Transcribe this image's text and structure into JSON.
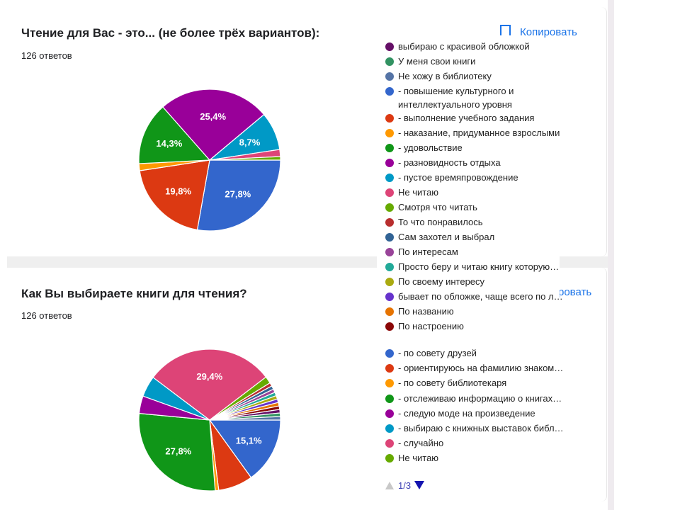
{
  "card1": {
    "title": "Чтение для Вас - это... (не более трёх вариантов):",
    "count": "126 ответов",
    "copy_label": "Копировать"
  },
  "card2": {
    "title": "Как Вы выбираете книги для чтения?",
    "count": "126 ответов",
    "copy_label": "ровать"
  },
  "legend_top": [
    {
      "label": "выбираю с красивой обложкой",
      "color": "#651067"
    },
    {
      "label": "У меня свои книги",
      "color": "#329262"
    },
    {
      "label": "Не хожу в библиотеку",
      "color": "#5574a6"
    },
    {
      "label": "- повышение культурного и интеллектуального уровня",
      "color": "#3366cc"
    },
    {
      "label": "- выполнение учебного задания",
      "color": "#dc3912"
    },
    {
      "label": "- наказание, придуманное взрослыми",
      "color": "#ff9900"
    },
    {
      "label": "- удовольствие",
      "color": "#109618"
    },
    {
      "label": "- разновидность отдыха",
      "color": "#990099"
    },
    {
      "label": "- пустое времяпровождение",
      "color": "#0099c6"
    },
    {
      "label": "Не читаю",
      "color": "#dd4477"
    },
    {
      "label": "Смотря что читать",
      "color": "#66aa00"
    },
    {
      "label": "То что понравилось",
      "color": "#b82e2e"
    },
    {
      "label": "Сам захотел и выбрал",
      "color": "#316395"
    },
    {
      "label": "По интересам",
      "color": "#994499"
    },
    {
      "label": "Просто беру и читаю книгу которую…",
      "color": "#22aa99"
    },
    {
      "label": "По своему интересу",
      "color": "#aaaa11"
    },
    {
      "label": "бывает по обложке, чаще всего по л…",
      "color": "#6633cc"
    },
    {
      "label": "По названию",
      "color": "#e67300"
    },
    {
      "label": "По настроению",
      "color": "#8b0707"
    }
  ],
  "legend_bottom": [
    {
      "label": "- по совету друзей",
      "color": "#3366cc"
    },
    {
      "label": "- ориентируюсь на фамилию знаком…",
      "color": "#dc3912"
    },
    {
      "label": "- по совету библиотекаря",
      "color": "#ff9900"
    },
    {
      "label": "- отслеживаю информацию о книгах…",
      "color": "#109618"
    },
    {
      "label": "- следую моде на произведение",
      "color": "#990099"
    },
    {
      "label": "- выбираю с книжных выставок библ…",
      "color": "#0099c6"
    },
    {
      "label": "- случайно",
      "color": "#dd4477"
    },
    {
      "label": "Не читаю",
      "color": "#66aa00"
    }
  ],
  "pager": {
    "label": "1/3"
  },
  "chart_data": [
    {
      "type": "pie",
      "title": "Чтение для Вас - это... (не более трёх вариантов):",
      "categories": [
        "- повышение культурного и интеллектуального уровня",
        "- выполнение учебного задания",
        "- наказание, придуманное взрослыми",
        "- удовольствие",
        "- разновидность отдыха",
        "- пустое времяпровождение",
        "Не читаю",
        "Смотря что читать"
      ],
      "values": [
        27.8,
        19.8,
        1.6,
        14.3,
        25.4,
        8.7,
        1.6,
        0.8
      ],
      "labels": [
        "27,8%",
        "19,8%",
        "",
        "14,3%",
        "25,4%",
        "8,7%",
        "",
        ""
      ],
      "colors": [
        "#3366cc",
        "#dc3912",
        "#ff9900",
        "#109618",
        "#990099",
        "#0099c6",
        "#dd4477",
        "#66aa00"
      ]
    },
    {
      "type": "pie",
      "title": "Как Вы выбираете книги для чтения?",
      "categories": [
        "- по совету друзей",
        "- ориентируюсь на фамилию знаком…",
        "- по совету библиотекаря",
        "- отслеживаю информацию о книгах…",
        "- следую моде на произведение",
        "- выбираю с книжных выставок библ…",
        "- случайно",
        "Не читаю",
        "То что понравилось",
        "Сам захотел и выбрал",
        "По интересам",
        "Просто беру и читаю книгу которую…",
        "По своему интересу",
        "бывает по обложке, чаще всего по л…",
        "По названию",
        "По настроению",
        "выбираю с красивой обложкой",
        "У меня свои книги",
        "Не хожу в библиотеку"
      ],
      "values": [
        15.1,
        7.9,
        0.8,
        27.8,
        4.0,
        4.8,
        29.4,
        1.6,
        0.8,
        0.8,
        0.8,
        0.8,
        0.8,
        0.8,
        0.8,
        0.8,
        0.8,
        0.8,
        0.8
      ],
      "labels": [
        "15,1%",
        "",
        "",
        "27,8%",
        "",
        "",
        "29,4%",
        "",
        "",
        "",
        "",
        "",
        "",
        "",
        "",
        "",
        "",
        "",
        ""
      ],
      "colors": [
        "#3366cc",
        "#dc3912",
        "#ff9900",
        "#109618",
        "#990099",
        "#0099c6",
        "#dd4477",
        "#66aa00",
        "#b82e2e",
        "#316395",
        "#994499",
        "#22aa99",
        "#aaaa11",
        "#6633cc",
        "#e67300",
        "#8b0707",
        "#651067",
        "#329262",
        "#5574a6"
      ]
    }
  ]
}
